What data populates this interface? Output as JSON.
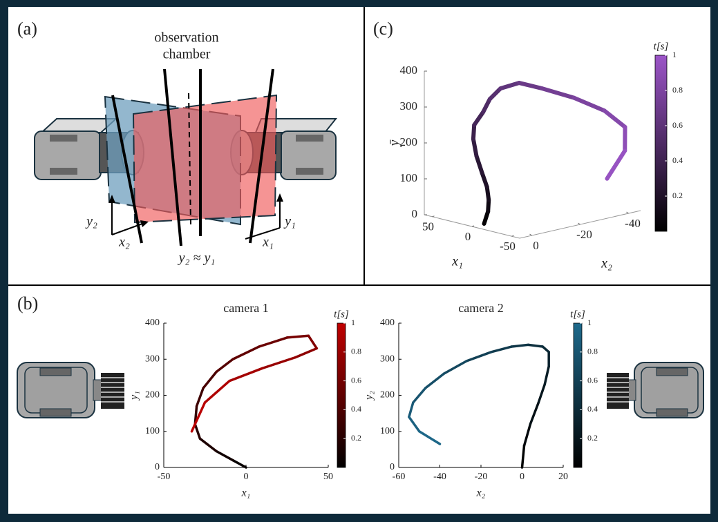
{
  "diagram": {
    "label": "(a)",
    "chamber_label": [
      "observation",
      "chamber"
    ],
    "y2": "y₂",
    "x2": "x₂",
    "common": "y₂ ≈ y₁",
    "y1": "y₁",
    "x1": "x₁"
  },
  "panel_labels": {
    "b": "(b)",
    "c": "(c)"
  },
  "chart_data": [
    {
      "type": "line",
      "title": "camera 1",
      "xlabel": "x₁",
      "ylabel": "y₁",
      "color": "#c00000",
      "x": [
        0,
        -8,
        -18,
        -28,
        -31,
        -30,
        -26,
        -18,
        -8,
        8,
        25,
        38,
        43,
        30,
        10,
        -10,
        -25,
        -33
      ],
      "values": [
        0,
        20,
        45,
        80,
        120,
        170,
        220,
        265,
        300,
        335,
        360,
        365,
        330,
        305,
        275,
        240,
        180,
        100
      ],
      "xlim": [
        -50,
        50
      ],
      "xticks": [
        -50,
        0,
        50
      ],
      "ylim": [
        0,
        400
      ],
      "yticks": [
        0,
        100,
        200,
        300,
        400
      ],
      "colorbar": {
        "label": "t[s]",
        "lim": [
          0,
          1
        ],
        "ticks": [
          0.2,
          0.4,
          0.6,
          0.8,
          1
        ]
      }
    },
    {
      "type": "line",
      "title": "camera 2",
      "xlabel": "x₂",
      "ylabel": "y₂",
      "color": "#1e6a8c",
      "x": [
        0,
        1,
        4,
        8,
        11,
        13,
        13,
        10,
        3,
        -5,
        -15,
        -27,
        -38,
        -47,
        -53,
        -55,
        -50,
        -40
      ],
      "values": [
        0,
        60,
        120,
        180,
        230,
        280,
        320,
        335,
        340,
        335,
        320,
        295,
        260,
        220,
        180,
        140,
        100,
        65
      ],
      "xlim": [
        -60,
        20
      ],
      "xticks": [
        -60,
        -40,
        -20,
        0,
        20
      ],
      "ylim": [
        0,
        400
      ],
      "yticks": [
        0,
        100,
        200,
        300,
        400
      ],
      "colorbar": {
        "label": "t[s]",
        "lim": [
          0,
          1
        ],
        "ticks": [
          0.2,
          0.4,
          0.6,
          0.8,
          1
        ]
      }
    },
    {
      "type": "line3d",
      "x1label": "x₁",
      "x2label": "x₂",
      "ylabel": "ȳ",
      "color": "#9c55c8",
      "x1": [
        0,
        -8,
        -18,
        -28,
        -31,
        -30,
        -26,
        -18,
        -8,
        8,
        25,
        38,
        43,
        30,
        10,
        -10,
        -25,
        -33
      ],
      "x2": [
        0,
        1,
        4,
        8,
        11,
        13,
        13,
        10,
        3,
        -5,
        -15,
        -27,
        -38,
        -47,
        -53,
        -55,
        -50,
        -40
      ],
      "values": [
        0,
        40,
        82,
        130,
        175,
        225,
        270,
        300,
        320,
        335,
        340,
        330,
        295,
        262,
        228,
        190,
        140,
        82
      ],
      "x1lim": [
        -60,
        60
      ],
      "x1ticks": [
        -50,
        0,
        50
      ],
      "x2lim": [
        -45,
        5
      ],
      "x2ticks": [
        -40,
        -20,
        0
      ],
      "ylim": [
        0,
        400
      ],
      "yticks": [
        0,
        100,
        200,
        300,
        400
      ],
      "colorbar": {
        "label": "t[s]",
        "lim": [
          0,
          1
        ],
        "ticks": [
          0.2,
          0.4,
          0.6,
          0.8,
          1
        ]
      }
    }
  ]
}
